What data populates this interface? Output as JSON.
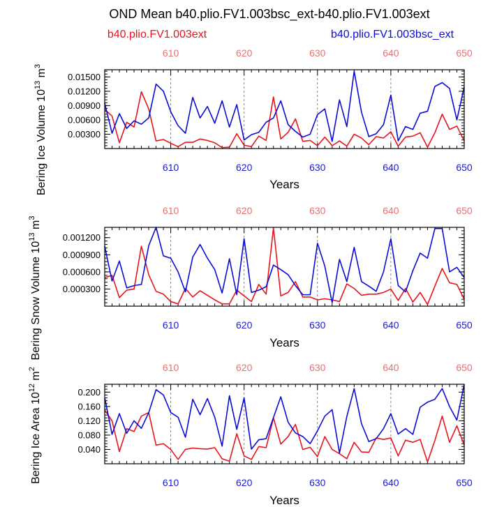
{
  "figure": {
    "title": "OND Mean b40.plio.FV1.003bsc_ext-b40.plio.FV1.003ext",
    "left_label": "b40.plio.FV1.003ext",
    "right_label": "b40.plio.FV1.003bsc_ext"
  },
  "colors": {
    "red": "#e8141b",
    "blue": "#0b0bd6",
    "top_tick": "#e87070",
    "bottom_tick": "#1a1ad6",
    "axis": "#000000"
  },
  "chart_data": [
    {
      "type": "line",
      "title": "",
      "xlabel": "Years",
      "ylabel_main": "Bering Ice Volume 10",
      "ylabel_sup": "13",
      "ylabel_unit": "m",
      "ylabel_unit_sup": "3",
      "xlim": [
        601,
        650
      ],
      "ylim": [
        0,
        0.0165
      ],
      "yticks": [
        0.003,
        0.006,
        0.009,
        0.012,
        0.015
      ],
      "ytick_labels": [
        "0.00300",
        "0.00600",
        "0.00900",
        "0.01200",
        "0.01500"
      ],
      "x": [
        601,
        602,
        603,
        604,
        605,
        606,
        607,
        608,
        609,
        610,
        611,
        612,
        613,
        614,
        615,
        616,
        617,
        618,
        619,
        620,
        621,
        622,
        623,
        624,
        625,
        626,
        627,
        628,
        629,
        630,
        631,
        632,
        633,
        634,
        635,
        636,
        637,
        638,
        639,
        640,
        641,
        642,
        643,
        644,
        645,
        646,
        647,
        648,
        649,
        650
      ],
      "series": [
        {
          "name": "b40.plio.FV1.003ext",
          "color": "red",
          "values": [
            0.0082,
            0.0068,
            0.0012,
            0.0055,
            0.0045,
            0.0119,
            0.0083,
            0.0016,
            0.0019,
            0.0011,
            0.0004,
            0.0013,
            0.0013,
            0.002,
            0.0017,
            0.0012,
            0.0002,
            0.0003,
            0.0031,
            0.0007,
            0.0004,
            0.0026,
            0.0017,
            0.0108,
            0.002,
            0.0034,
            0.0062,
            0.0015,
            0.0017,
            0.0006,
            0.0024,
            0.0006,
            0.0016,
            0.0005,
            0.003,
            0.0022,
            0.0008,
            0.0025,
            0.0022,
            0.0035,
            0.0005,
            0.0024,
            0.0026,
            0.0033,
            0.0003,
            0.0033,
            0.0072,
            0.004,
            0.0047,
            0.0016
          ]
        },
        {
          "name": "b40.plio.FV1.003bsc_ext",
          "color": "blue",
          "values": [
            0.0095,
            0.0032,
            0.0073,
            0.0042,
            0.0058,
            0.0051,
            0.0064,
            0.0135,
            0.012,
            0.0077,
            0.0048,
            0.0032,
            0.0107,
            0.0064,
            0.0088,
            0.0053,
            0.01,
            0.0045,
            0.0092,
            0.0018,
            0.0029,
            0.0034,
            0.0055,
            0.0064,
            0.01,
            0.005,
            0.0036,
            0.0024,
            0.003,
            0.0071,
            0.0083,
            0.0015,
            0.0102,
            0.0046,
            0.0162,
            0.0076,
            0.0025,
            0.0031,
            0.005,
            0.0112,
            0.0016,
            0.0046,
            0.004,
            0.0074,
            0.0078,
            0.013,
            0.0138,
            0.0126,
            0.006,
            0.0129
          ]
        }
      ]
    },
    {
      "type": "line",
      "title": "",
      "xlabel": "Years",
      "ylabel_main": "Bering Snow Volume 10",
      "ylabel_sup": "13",
      "ylabel_unit": "m",
      "ylabel_unit_sup": "3",
      "xlim": [
        601,
        650
      ],
      "ylim": [
        0,
        0.00138
      ],
      "yticks": [
        0.0003,
        0.0006,
        0.0009,
        0.0012
      ],
      "ytick_labels": [
        "0.000300",
        "0.000600",
        "0.000900",
        "0.001200"
      ],
      "x": [
        601,
        602,
        603,
        604,
        605,
        606,
        607,
        608,
        609,
        610,
        611,
        612,
        613,
        614,
        615,
        616,
        617,
        618,
        619,
        620,
        621,
        622,
        623,
        624,
        625,
        626,
        627,
        628,
        629,
        630,
        631,
        632,
        633,
        634,
        635,
        636,
        637,
        638,
        639,
        640,
        641,
        642,
        643,
        644,
        645,
        646,
        647,
        648,
        649,
        650
      ],
      "series": [
        {
          "name": "b40.plio.FV1.003ext",
          "color": "red",
          "values": [
            0.0005,
            0.00054,
            0.00015,
            0.00028,
            0.0003,
            0.00105,
            0.00055,
            0.00026,
            0.00021,
            8e-05,
            4e-05,
            0.00031,
            0.00016,
            0.00027,
            0.00019,
            0.00011,
            4e-05,
            4e-05,
            0.00028,
            0.00018,
            8e-05,
            0.00038,
            0.00021,
            0.00137,
            0.00018,
            0.00024,
            0.00043,
            0.00016,
            0.00016,
            0.00011,
            0.00013,
            0.00011,
            8e-05,
            0.00039,
            0.00031,
            0.00019,
            0.00021,
            0.00021,
            0.00024,
            0.0003,
            0.0001,
            0.00031,
            7e-05,
            0.00024,
            3e-05,
            0.00035,
            0.00066,
            0.00041,
            0.00038,
            0.00012
          ]
        },
        {
          "name": "b40.plio.FV1.003bsc_ext",
          "color": "blue",
          "values": [
            0.00105,
            0.00044,
            0.00079,
            0.00032,
            0.00036,
            0.00038,
            0.00106,
            0.00138,
            0.00088,
            0.00084,
            0.0006,
            0.00025,
            0.00086,
            0.00108,
            0.00084,
            0.00064,
            0.00023,
            0.00083,
            0.0002,
            0.00118,
            0.00024,
            0.00028,
            0.00034,
            0.00072,
            0.00064,
            0.00055,
            0.00036,
            0.0002,
            0.0002,
            0.0011,
            0.0007,
            6e-05,
            0.00082,
            0.00043,
            0.00103,
            0.00043,
            0.00035,
            0.00026,
            0.0006,
            0.00118,
            0.00036,
            0.00025,
            0.00062,
            0.00093,
            0.00084,
            0.00136,
            0.00136,
            0.0006,
            0.00068,
            0.0005
          ]
        }
      ]
    },
    {
      "type": "line",
      "title": "",
      "xlabel": "Years",
      "ylabel_main": "Bering Ice Area 10",
      "ylabel_sup": "12",
      "ylabel_unit": "m",
      "ylabel_unit_sup": "2",
      "xlim": [
        601,
        650
      ],
      "ylim": [
        0,
        0.222
      ],
      "yticks": [
        0.04,
        0.08,
        0.12,
        0.16,
        0.2
      ],
      "ytick_labels": [
        "0.040",
        "0.080",
        "0.120",
        "0.160",
        "0.200"
      ],
      "x": [
        601,
        602,
        603,
        604,
        605,
        606,
        607,
        608,
        609,
        610,
        611,
        612,
        613,
        614,
        615,
        616,
        617,
        618,
        619,
        620,
        621,
        622,
        623,
        624,
        625,
        626,
        627,
        628,
        629,
        630,
        631,
        632,
        633,
        634,
        635,
        636,
        637,
        638,
        639,
        640,
        641,
        642,
        643,
        644,
        645,
        646,
        647,
        648,
        649,
        650
      ],
      "series": [
        {
          "name": "b40.plio.FV1.003ext",
          "color": "red",
          "values": [
            0.15,
            0.12,
            0.034,
            0.098,
            0.09,
            0.133,
            0.143,
            0.052,
            0.056,
            0.04,
            0.012,
            0.04,
            0.044,
            0.042,
            0.041,
            0.045,
            0.014,
            0.007,
            0.084,
            0.022,
            0.012,
            0.048,
            0.045,
            0.128,
            0.055,
            0.076,
            0.11,
            0.04,
            0.046,
            0.02,
            0.076,
            0.04,
            0.028,
            0.014,
            0.06,
            0.033,
            0.032,
            0.072,
            0.068,
            0.072,
            0.022,
            0.066,
            0.06,
            0.068,
            0.005,
            0.065,
            0.133,
            0.06,
            0.106,
            0.052
          ]
        },
        {
          "name": "b40.plio.FV1.003bsc_ext",
          "color": "blue",
          "values": [
            0.185,
            0.082,
            0.14,
            0.085,
            0.12,
            0.099,
            0.143,
            0.207,
            0.192,
            0.143,
            0.13,
            0.074,
            0.18,
            0.137,
            0.182,
            0.13,
            0.049,
            0.19,
            0.096,
            0.184,
            0.041,
            0.067,
            0.07,
            0.129,
            0.187,
            0.116,
            0.086,
            0.076,
            0.056,
            0.092,
            0.133,
            0.151,
            0.03,
            0.132,
            0.21,
            0.112,
            0.062,
            0.07,
            0.098,
            0.14,
            0.083,
            0.098,
            0.082,
            0.158,
            0.172,
            0.18,
            0.21,
            0.16,
            0.122,
            0.222
          ]
        }
      ]
    }
  ],
  "panel_axes": {
    "xticks_major": [
      610,
      620,
      630,
      640,
      650
    ],
    "xtick_labels": [
      "610",
      "620",
      "630",
      "640",
      "650"
    ],
    "grid_years": [
      610,
      620,
      630,
      640
    ],
    "top_ticks_color": "top_tick",
    "bottom_ticks_color": "bottom_tick"
  }
}
